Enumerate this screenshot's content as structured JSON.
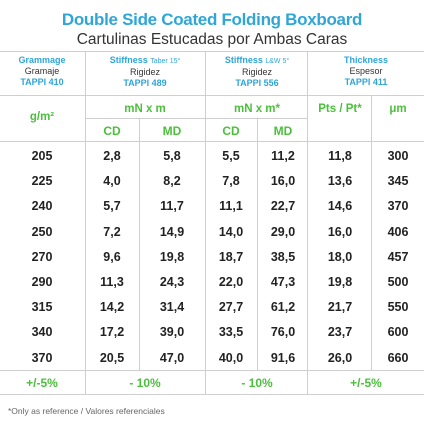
{
  "header": {
    "title": "Double Side Coated Folding Boxboard",
    "subtitle": "Cartulinas Estucadas por Ambas Caras"
  },
  "columns": {
    "grammage": {
      "label": "Grammage",
      "es": "Gramaje",
      "std": "TAPPI 410"
    },
    "stiffness_taber": {
      "label": "Stiffness",
      "extra": "Taber 15°",
      "es": "Rigidez",
      "std": "TAPPI 489"
    },
    "stiffness_lw": {
      "label": "Stiffness",
      "extra": "L&W 5°",
      "es": "Rigidez",
      "std": "TAPPI 556"
    },
    "thickness": {
      "label": "Thickness",
      "es": "Espesor",
      "std": "TAPPI 411"
    }
  },
  "units": {
    "grammage": "g/m²",
    "taber": "mN x m",
    "lw": "mN x m*",
    "pts": "Pts / Pt*",
    "um": "μm"
  },
  "subheaders": {
    "cd": "CD",
    "md": "MD"
  },
  "rows": [
    {
      "g": "205",
      "t_cd": "2,8",
      "t_md": "5,8",
      "l_cd": "5,5",
      "l_md": "11,2",
      "pts": "11,8",
      "um": "300"
    },
    {
      "g": "225",
      "t_cd": "4,0",
      "t_md": "8,2",
      "l_cd": "7,8",
      "l_md": "16,0",
      "pts": "13,6",
      "um": "345"
    },
    {
      "g": "240",
      "t_cd": "5,7",
      "t_md": "11,7",
      "l_cd": "11,1",
      "l_md": "22,7",
      "pts": "14,6",
      "um": "370"
    },
    {
      "g": "250",
      "t_cd": "7,2",
      "t_md": "14,9",
      "l_cd": "14,0",
      "l_md": "29,0",
      "pts": "16,0",
      "um": "406"
    },
    {
      "g": "270",
      "t_cd": "9,6",
      "t_md": "19,8",
      "l_cd": "18,7",
      "l_md": "38,5",
      "pts": "18,0",
      "um": "457"
    },
    {
      "g": "290",
      "t_cd": "11,3",
      "t_md": "24,3",
      "l_cd": "22,0",
      "l_md": "47,3",
      "pts": "19,8",
      "um": "500"
    },
    {
      "g": "315",
      "t_cd": "14,2",
      "t_md": "31,4",
      "l_cd": "27,7",
      "l_md": "61,2",
      "pts": "21,7",
      "um": "550"
    },
    {
      "g": "340",
      "t_cd": "17,2",
      "t_md": "39,0",
      "l_cd": "33,5",
      "l_md": "76,0",
      "pts": "23,7",
      "um": "600"
    },
    {
      "g": "370",
      "t_cd": "20,5",
      "t_md": "47,0",
      "l_cd": "40,0",
      "l_md": "91,6",
      "pts": "26,0",
      "um": "660"
    }
  ],
  "tolerances": {
    "grammage": "+/-5%",
    "taber": "- 10%",
    "lw": "- 10%",
    "thickness": "+/-5%"
  },
  "note": "*Only as reference / Valores referenciales",
  "colors": {
    "blue": "#2fa6d8",
    "green": "#4cbf3c"
  }
}
